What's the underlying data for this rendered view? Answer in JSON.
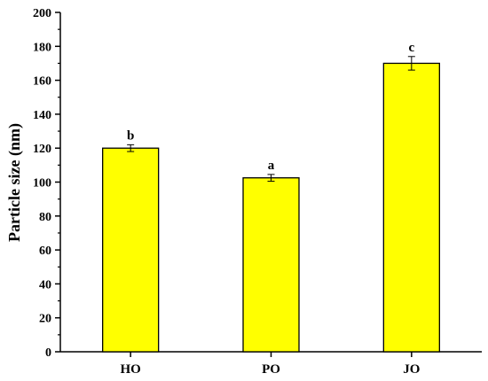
{
  "chart_data": {
    "type": "bar",
    "categories": [
      "HO",
      "PO",
      "JO"
    ],
    "values": [
      120,
      102.5,
      170
    ],
    "errors": [
      2,
      2,
      4
    ],
    "significance": [
      "b",
      "a",
      "c"
    ],
    "xlabel": "",
    "ylabel": "Particle size (nm)",
    "ylim": [
      0,
      200
    ],
    "yticks": [
      0,
      20,
      40,
      60,
      80,
      100,
      120,
      140,
      160,
      180,
      200
    ],
    "grid": false,
    "colors": {
      "bar_fill": "#ffff00",
      "bar_stroke": "#000000",
      "axis": "#000000"
    }
  }
}
